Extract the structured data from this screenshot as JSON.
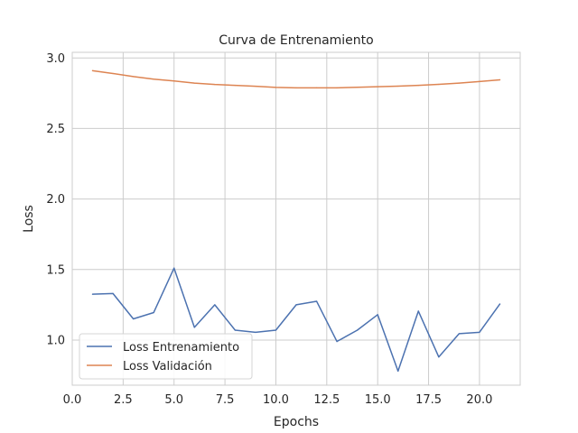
{
  "chart_data": {
    "type": "line",
    "title": "Curva de Entrenamiento",
    "xlabel": "Epochs",
    "ylabel": "Loss",
    "xlim": [
      0,
      22
    ],
    "ylim": [
      0.68,
      3.04
    ],
    "xticks": [
      "0.0",
      "2.5",
      "5.0",
      "7.5",
      "10.0",
      "12.5",
      "15.0",
      "17.5",
      "20.0"
    ],
    "xtick_values": [
      0,
      2.5,
      5,
      7.5,
      10,
      12.5,
      15,
      17.5,
      20
    ],
    "yticks": [
      "1.0",
      "1.5",
      "2.0",
      "2.5",
      "3.0"
    ],
    "ytick_values": [
      1.0,
      1.5,
      2.0,
      2.5,
      3.0
    ],
    "grid": true,
    "legend_position": "lower-left",
    "x": [
      1,
      2,
      3,
      4,
      5,
      6,
      7,
      8,
      9,
      10,
      11,
      12,
      13,
      14,
      15,
      16,
      17,
      18,
      19,
      20,
      21
    ],
    "series": [
      {
        "name": "Loss Entrenamiento",
        "color": "#4c72b0",
        "values": [
          1.325,
          1.33,
          1.15,
          1.195,
          1.51,
          1.09,
          1.25,
          1.07,
          1.055,
          1.07,
          1.25,
          1.275,
          0.99,
          1.07,
          1.18,
          0.78,
          1.205,
          0.88,
          1.045,
          1.055,
          1.255
        ]
      },
      {
        "name": "Loss Validación",
        "color": "#dd8452",
        "values": [
          2.91,
          2.89,
          2.868,
          2.85,
          2.837,
          2.822,
          2.812,
          2.806,
          2.799,
          2.791,
          2.788,
          2.788,
          2.788,
          2.792,
          2.796,
          2.8,
          2.806,
          2.813,
          2.822,
          2.833,
          2.845
        ]
      }
    ]
  }
}
